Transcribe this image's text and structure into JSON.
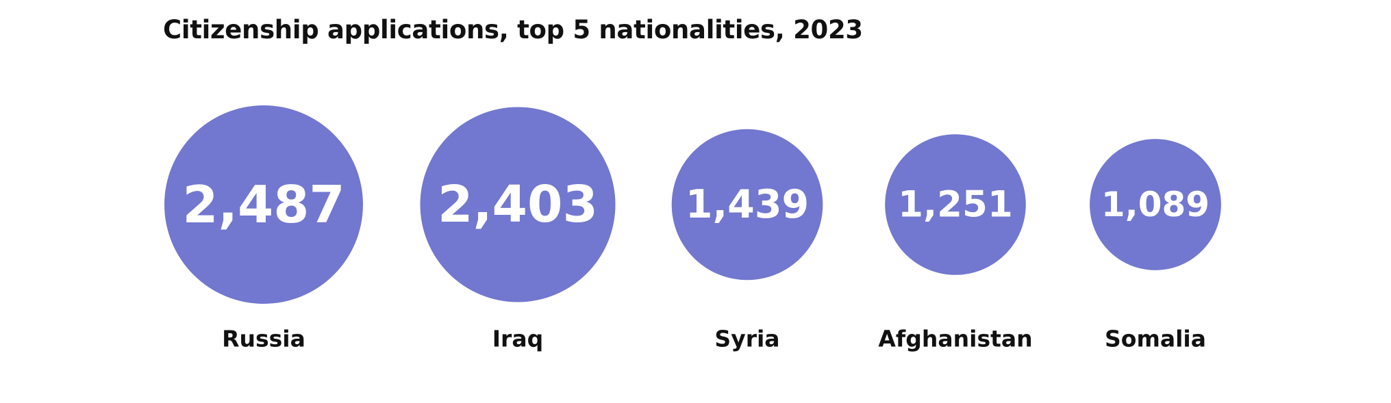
{
  "chart_data": {
    "type": "bubble",
    "title": "Citizenship applications, top 5 nationalities, 2023",
    "categories": [
      "Russia",
      "Iraq",
      "Syria",
      "Afghanistan",
      "Somalia"
    ],
    "values": [
      2487,
      2403,
      1439,
      1251,
      1089
    ],
    "value_labels": [
      "2,487",
      "2,403",
      "1,439",
      "1,251",
      "1,089"
    ],
    "color": "#7277cf",
    "legend": "none",
    "grid": false
  }
}
